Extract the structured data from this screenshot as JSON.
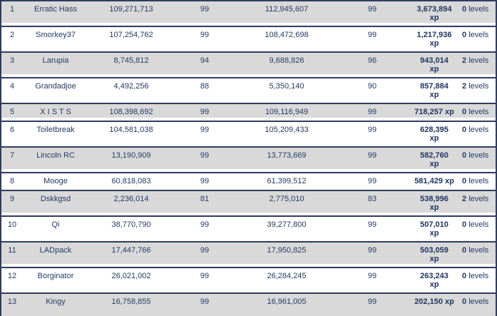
{
  "colors": {
    "border": "#2e3d5f",
    "text": "#233a63",
    "bold_text": "#1e3560",
    "row_shaded_bg": "#d9d9d9",
    "row_plain_bg": "#ffffff"
  },
  "table": {
    "xp_unit_label": "xp",
    "levels_unit_label": "levels",
    "rows": [
      {
        "rank": "1",
        "player": "Erratic Hass",
        "start_xp": "109,271,713",
        "start_level": "99",
        "end_xp": "112,945,607",
        "end_level": "99",
        "xp_gained": "3,673,894",
        "xp_unit": "xp",
        "xp_two_lines": true,
        "levels_gained": "0",
        "levels_unit": "levels"
      },
      {
        "rank": "2",
        "player": "Smorkey37",
        "start_xp": "107,254,762",
        "start_level": "99",
        "end_xp": "108,472,698",
        "end_level": "99",
        "xp_gained": "1,217,936",
        "xp_unit": "xp",
        "xp_two_lines": true,
        "levels_gained": "0",
        "levels_unit": "levels"
      },
      {
        "rank": "3",
        "player": "Larupia",
        "start_xp": "8,745,812",
        "start_level": "94",
        "end_xp": "9,688,826",
        "end_level": "96",
        "xp_gained": "943,014",
        "xp_unit": "xp",
        "xp_two_lines": true,
        "levels_gained": "2",
        "levels_unit": "levels"
      },
      {
        "rank": "4",
        "player": "Grandadjoe",
        "start_xp": "4,492,256",
        "start_level": "88",
        "end_xp": "5,350,140",
        "end_level": "90",
        "xp_gained": "857,884",
        "xp_unit": "xp",
        "xp_two_lines": true,
        "levels_gained": "2",
        "levels_unit": "levels"
      },
      {
        "rank": "5",
        "player": "X I S T S",
        "start_xp": "108,398,692",
        "start_level": "99",
        "end_xp": "109,116,949",
        "end_level": "99",
        "xp_gained": "718,257",
        "xp_unit": "xp",
        "xp_two_lines": false,
        "levels_gained": "0",
        "levels_unit": "levels"
      },
      {
        "rank": "6",
        "player": "Toiletbreak",
        "start_xp": "104,581,038",
        "start_level": "99",
        "end_xp": "105,209,433",
        "end_level": "99",
        "xp_gained": "628,395",
        "xp_unit": "xp",
        "xp_two_lines": true,
        "levels_gained": "0",
        "levels_unit": "levels"
      },
      {
        "rank": "7",
        "player": "Lincoln RC",
        "start_xp": "13,190,909",
        "start_level": "99",
        "end_xp": "13,773,669",
        "end_level": "99",
        "xp_gained": "582,760",
        "xp_unit": "xp",
        "xp_two_lines": true,
        "levels_gained": "0",
        "levels_unit": "levels"
      },
      {
        "rank": "8",
        "player": "Mooge",
        "start_xp": "60,818,083",
        "start_level": "99",
        "end_xp": "61,399,512",
        "end_level": "99",
        "xp_gained": "581,429",
        "xp_unit": "xp",
        "xp_two_lines": false,
        "levels_gained": "0",
        "levels_unit": "levels"
      },
      {
        "rank": "9",
        "player": "Dskkgsd",
        "start_xp": "2,236,014",
        "start_level": "81",
        "end_xp": "2,775,010",
        "end_level": "83",
        "xp_gained": "538,996",
        "xp_unit": "xp",
        "xp_two_lines": true,
        "levels_gained": "2",
        "levels_unit": "levels"
      },
      {
        "rank": "10",
        "player": "Qi",
        "start_xp": "38,770,790",
        "start_level": "99",
        "end_xp": "39,277,800",
        "end_level": "99",
        "xp_gained": "507,010",
        "xp_unit": "xp",
        "xp_two_lines": true,
        "levels_gained": "0",
        "levels_unit": "levels"
      },
      {
        "rank": "11",
        "player": "LADpack",
        "start_xp": "17,447,766",
        "start_level": "99",
        "end_xp": "17,950,825",
        "end_level": "99",
        "xp_gained": "503,059",
        "xp_unit": "xp",
        "xp_two_lines": true,
        "levels_gained": "0",
        "levels_unit": "levels"
      },
      {
        "rank": "12",
        "player": "Borginator",
        "start_xp": "26,021,002",
        "start_level": "99",
        "end_xp": "26,284,245",
        "end_level": "99",
        "xp_gained": "263,243",
        "xp_unit": "xp",
        "xp_two_lines": true,
        "levels_gained": "0",
        "levels_unit": "levels"
      },
      {
        "rank": "13",
        "player": "Kingy",
        "start_xp": "16,758,855",
        "start_level": "99",
        "end_xp": "16,961,005",
        "end_level": "99",
        "xp_gained": "202,150",
        "xp_unit": "xp",
        "xp_two_lines": false,
        "levels_gained": "0",
        "levels_unit": "levels"
      }
    ]
  }
}
